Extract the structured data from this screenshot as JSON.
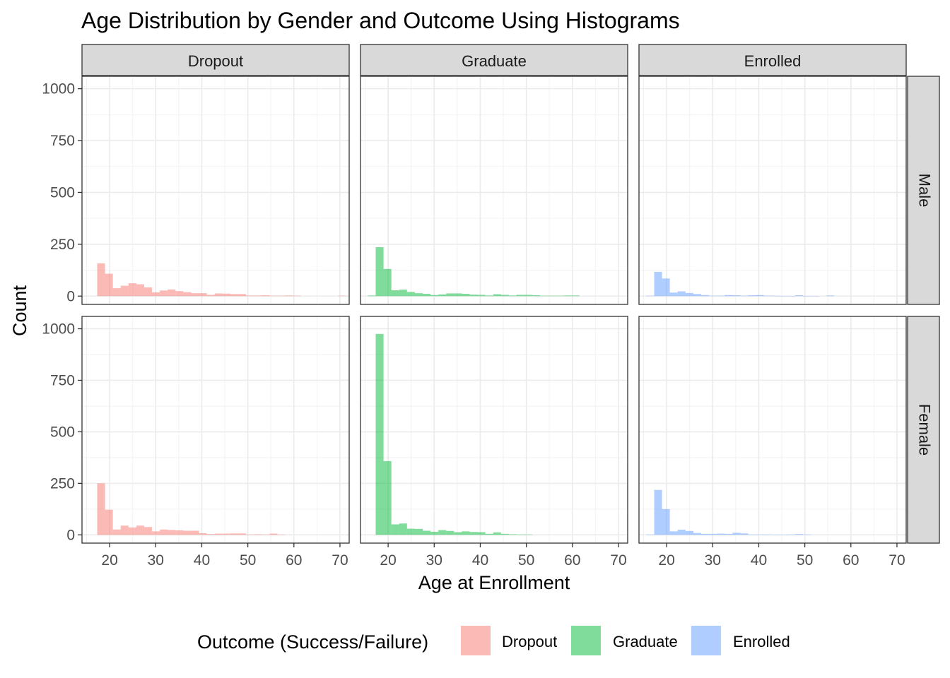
{
  "chart_data": {
    "type": "bar",
    "subtype": "faceted-histogram",
    "title": "Age Distribution by Gender and Outcome Using Histograms",
    "xlabel": "Age at Enrollment",
    "ylabel": "Count",
    "xlim": [
      14,
      72
    ],
    "ylim": [
      -40,
      1060
    ],
    "xticks": [
      "20",
      "30",
      "40",
      "50",
      "60",
      "70"
    ],
    "yticks": [
      "0",
      "250",
      "500",
      "750",
      "1000"
    ],
    "bin_width": 1.7,
    "grid": true,
    "legend": {
      "title": "Outcome (Success/Failure)",
      "position": "bottom",
      "items": [
        {
          "label": "Dropout",
          "color": "#F8766D"
        },
        {
          "label": "Graduate",
          "color": "#00BA38"
        },
        {
          "label": "Enrolled",
          "color": "#619CFF"
        }
      ]
    },
    "columns": [
      "Dropout",
      "Graduate",
      "Enrolled"
    ],
    "rows": [
      "Male",
      "Female"
    ],
    "panels": [
      {
        "row": "Male",
        "col": "Dropout",
        "color": "#F8766D",
        "bin_starts": [
          17.3,
          19.0,
          20.7,
          22.4,
          24.1,
          25.8,
          27.5,
          29.2,
          30.9,
          32.6,
          34.3,
          36.0,
          37.7,
          39.4,
          41.1,
          42.8,
          44.5,
          46.2,
          47.9,
          49.6,
          51.3,
          53.0,
          54.7,
          56.4,
          58.1,
          59.8,
          69.6
        ],
        "counts": [
          158,
          108,
          38,
          50,
          62,
          57,
          42,
          18,
          27,
          32,
          24,
          19,
          14,
          14,
          6,
          13,
          12,
          10,
          10,
          3,
          3,
          4,
          2,
          2,
          3,
          2,
          2
        ]
      },
      {
        "row": "Male",
        "col": "Graduate",
        "color": "#00BA38",
        "bin_starts": [
          15.6,
          17.3,
          19.0,
          20.7,
          22.4,
          24.1,
          25.8,
          27.5,
          29.2,
          30.9,
          32.6,
          34.3,
          36.0,
          37.7,
          39.4,
          41.1,
          42.8,
          44.5,
          46.2,
          47.9,
          49.6,
          51.3,
          53.0,
          54.7,
          56.4,
          58.1,
          59.8
        ],
        "counts": [
          3,
          236,
          131,
          28,
          31,
          20,
          14,
          11,
          5,
          8,
          13,
          13,
          11,
          7,
          6,
          3,
          9,
          6,
          3,
          6,
          6,
          4,
          2,
          2,
          2,
          3,
          3
        ]
      },
      {
        "row": "Male",
        "col": "Enrolled",
        "color": "#619CFF",
        "bin_starts": [
          15.6,
          17.3,
          19.0,
          20.7,
          22.4,
          24.1,
          25.8,
          27.5,
          29.2,
          30.9,
          32.6,
          34.3,
          36.0,
          37.7,
          39.4,
          41.1,
          42.8,
          44.5,
          46.2,
          47.9,
          49.6,
          51.3,
          54.7
        ],
        "counts": [
          2,
          117,
          85,
          17,
          23,
          15,
          10,
          5,
          2,
          2,
          5,
          4,
          2,
          4,
          5,
          2,
          2,
          1,
          1,
          4,
          1,
          1,
          3
        ]
      },
      {
        "row": "Female",
        "col": "Dropout",
        "color": "#F8766D",
        "bin_starts": [
          17.3,
          19.0,
          20.7,
          22.4,
          24.1,
          25.8,
          27.5,
          29.2,
          30.9,
          32.6,
          34.3,
          36.0,
          37.7,
          39.4,
          41.1,
          42.8,
          44.5,
          46.2,
          47.9,
          49.6,
          51.3,
          53.0,
          54.7,
          56.4
        ],
        "counts": [
          250,
          122,
          26,
          45,
          36,
          45,
          38,
          17,
          26,
          24,
          22,
          20,
          20,
          8,
          4,
          6,
          6,
          7,
          7,
          2,
          3,
          2,
          6,
          2
        ]
      },
      {
        "row": "Female",
        "col": "Graduate",
        "color": "#00BA38",
        "bin_starts": [
          17.3,
          19.0,
          20.7,
          22.4,
          24.1,
          25.8,
          27.5,
          29.2,
          30.9,
          32.6,
          34.3,
          36.0,
          37.7,
          39.4,
          41.1,
          42.8,
          44.5,
          46.2,
          47.9,
          49.6
        ],
        "counts": [
          975,
          358,
          51,
          55,
          30,
          29,
          20,
          15,
          23,
          19,
          13,
          17,
          14,
          13,
          5,
          12,
          5,
          3,
          2,
          2
        ]
      },
      {
        "row": "Female",
        "col": "Enrolled",
        "color": "#619CFF",
        "bin_starts": [
          15.6,
          17.3,
          19.0,
          20.7,
          22.4,
          24.1,
          25.8,
          27.5,
          29.2,
          30.9,
          32.6,
          34.3,
          36.0,
          37.7,
          39.4,
          41.1,
          42.8,
          44.5,
          46.2,
          47.9,
          49.6
        ],
        "counts": [
          2,
          218,
          125,
          17,
          25,
          19,
          9,
          5,
          5,
          6,
          5,
          10,
          7,
          2,
          2,
          2,
          1,
          1,
          2,
          4,
          2
        ]
      }
    ]
  }
}
